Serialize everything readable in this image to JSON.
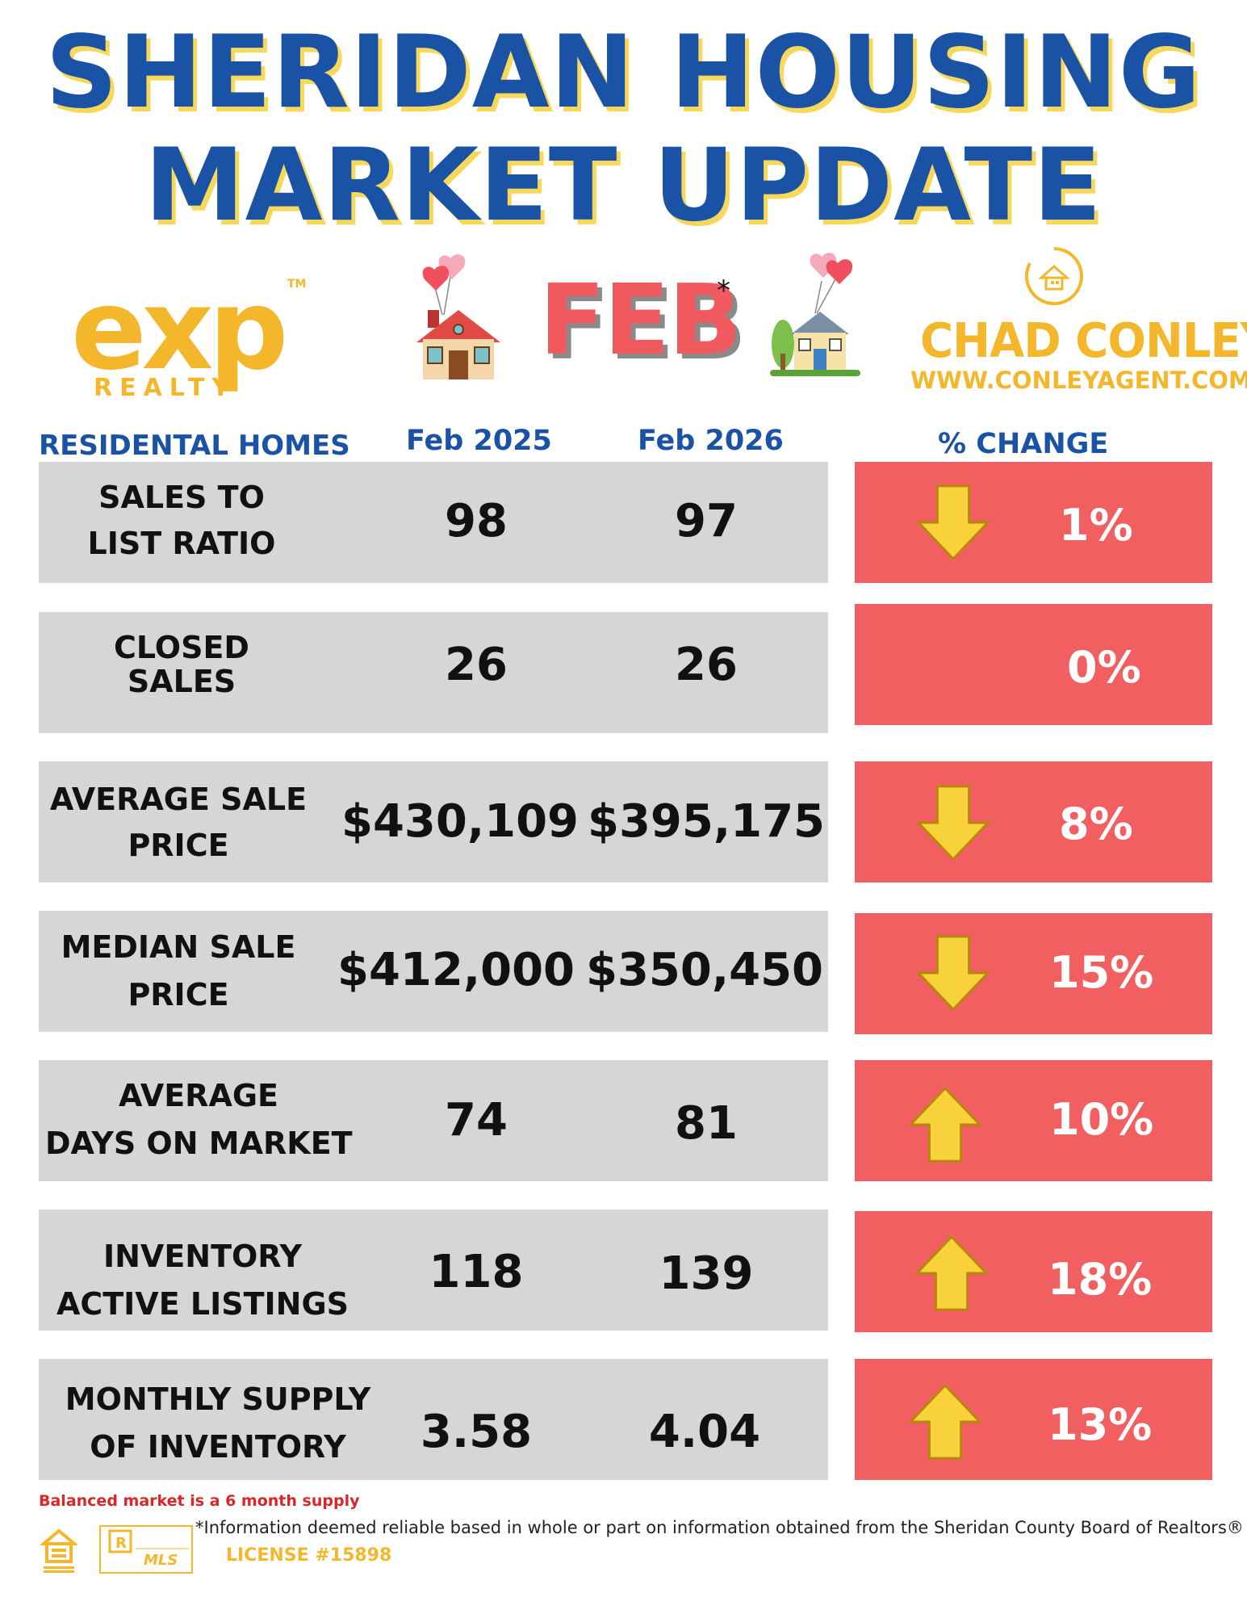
{
  "title": {
    "line1": "SHERIDAN HOUSING",
    "line2": "MARKET UPDATE"
  },
  "logos": {
    "exp": {
      "word": "exp",
      "tm": "TM",
      "realty": "REALTY"
    },
    "month": "FEB",
    "asterisk": "*",
    "agent": {
      "name": "CHAD CONLEY",
      "url": "WWW.CONLEYAGENT.COM"
    },
    "license": "LICENSE #15898"
  },
  "headers": {
    "category": "RESIDENTAL HOMES",
    "year1": "Feb 2025",
    "year2": "Feb 2026",
    "change": "% CHANGE"
  },
  "rows": [
    {
      "label1": "SALES TO",
      "label2": "LIST RATIO",
      "v2025": "98",
      "v2026": "97",
      "change": "1%",
      "direction": "down"
    },
    {
      "label1": "CLOSED",
      "label2": "SALES",
      "v2025": "26",
      "v2026": "26",
      "change": "0%",
      "direction": "none"
    },
    {
      "label1": "AVERAGE SALE",
      "label2": "PRICE",
      "v2025": "$430,109",
      "v2026": "$395,175",
      "change": "8%",
      "direction": "down"
    },
    {
      "label1": "MEDIAN SALE",
      "label2": "PRICE",
      "v2025": "$412,000",
      "v2026": "$350,450",
      "change": "15%",
      "direction": "down"
    },
    {
      "label1": "AVERAGE",
      "label2": "DAYS ON MARKET",
      "v2025": "74",
      "v2026": "81",
      "change": "10%",
      "direction": "up"
    },
    {
      "label1": "INVENTORY",
      "label2": "ACTIVE LISTINGS",
      "v2025": "118",
      "v2026": "139",
      "change": "18%",
      "direction": "up"
    },
    {
      "label1": "MONTHLY SUPPLY",
      "label2": "OF INVENTORY",
      "v2025": "3.58",
      "v2026": "4.04",
      "change": "13%",
      "direction": "up"
    }
  ],
  "footer": {
    "balanced": "Balanced market is a 6 month supply",
    "source": "*Information deemed reliable based in whole or part on information obtained from the Sheridan County Board of Realtors®",
    "mls_text": "MLS",
    "eho_icon": "equal-housing-opportunity-icon",
    "realtor_icon": "realtor-mls-icon"
  },
  "colors": {
    "title": "#1a52a6",
    "title_shadow": "#f7d85a",
    "change_box": "#f25f60",
    "row_box": "#d6d6d6",
    "gold": "#f4b72c"
  }
}
